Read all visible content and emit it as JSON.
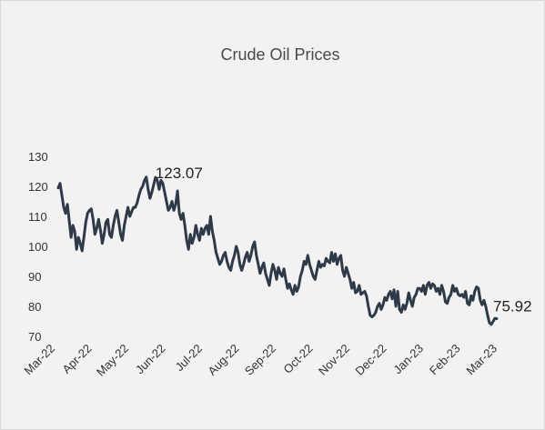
{
  "chart_data": {
    "type": "line",
    "title": "Crude Oil Prices",
    "xlabel": "",
    "ylabel": "",
    "ylim": [
      70,
      130
    ],
    "yticks": [
      70,
      80,
      90,
      100,
      110,
      120,
      130
    ],
    "x_tick_labels": [
      "Mar-22",
      "Apr-22",
      "May-22",
      "Jun-22",
      "Jul-22",
      "Aug-22",
      "Sep-22",
      "Oct-22",
      "Nov-22",
      "Dec-22",
      "Jan-23",
      "Feb-23",
      "Mar-23"
    ],
    "grid": false,
    "legend": "none",
    "line_color": "#2e3a48",
    "series": [
      {
        "values": [
          119.5,
          121.0,
          117.0,
          113.0,
          111.0,
          114.0,
          108.5,
          103.0,
          107.0,
          105.0,
          99.0,
          103.0,
          101.0,
          98.5,
          103.0,
          108.0,
          111.0,
          112.0,
          112.5,
          109.0,
          104.0,
          106.0,
          109.0,
          105.5,
          101.0,
          104.0,
          108.0,
          109.0,
          104.0,
          103.0,
          107.0,
          110.0,
          112.0,
          108.0,
          104.0,
          102.0,
          107.0,
          110.0,
          113.0,
          110.0,
          111.5,
          113.0,
          113.0,
          114.5,
          117.0,
          119.0,
          120.0,
          122.0,
          123.07,
          119.0,
          116.0,
          118.0,
          120.5,
          123.0,
          122.0,
          119.0,
          122.0,
          121.0,
          118.0,
          115.0,
          112.0,
          113.0,
          115.0,
          112.0,
          114.0,
          118.5,
          111.0,
          109.0,
          111.0,
          107.0,
          102.0,
          99.0,
          104.0,
          101.0,
          103.0,
          107.0,
          104.0,
          102.0,
          106.0,
          104.0,
          106.0,
          107.0,
          104.0,
          110.0,
          105.0,
          102.0,
          98.0,
          96.0,
          94.0,
          95.0,
          97.0,
          98.0,
          95.0,
          93.0,
          92.0,
          95.0,
          97.0,
          100.0,
          98.0,
          94.0,
          92.0,
          94.0,
          96.5,
          98.0,
          95.0,
          97.0,
          100.0,
          101.5,
          97.0,
          94.0,
          91.0,
          93.0,
          94.5,
          91.0,
          89.0,
          87.0,
          91.0,
          94.0,
          92.0,
          89.0,
          93.0,
          91.0,
          90.0,
          92.5,
          89.0,
          86.0,
          87.5,
          85.5,
          84.0,
          87.0,
          85.0,
          86.5,
          90.0,
          92.0,
          95.0,
          94.0,
          97.0,
          94.0,
          92.0,
          90.0,
          89.0,
          92.0,
          95.0,
          93.0,
          94.0,
          93.5,
          96.0,
          95.0,
          94.5,
          98.0,
          95.0,
          97.5,
          94.0,
          96.0,
          97.0,
          92.0,
          90.0,
          93.0,
          91.0,
          89.0,
          86.0,
          88.0,
          84.5,
          85.0,
          87.0,
          84.0,
          84.5,
          85.0,
          83.5,
          80.0,
          77.0,
          76.5,
          77.0,
          78.0,
          80.0,
          81.0,
          79.0,
          80.5,
          83.0,
          82.0,
          84.0,
          85.0,
          82.5,
          85.5,
          80.0,
          85.0,
          79.0,
          78.0,
          80.5,
          79.0,
          81.0,
          84.5,
          82.0,
          80.0,
          83.0,
          84.0,
          86.0,
          86.0,
          85.0,
          87.0,
          84.0,
          87.0,
          88.0,
          86.0,
          87.5,
          87.0,
          85.0,
          86.0,
          84.0,
          87.0,
          85.0,
          81.5,
          81.0,
          83.0,
          84.0,
          87.0,
          85.0,
          86.0,
          84.0,
          83.5,
          84.0,
          83.0,
          85.0,
          81.0,
          80.5,
          83.5,
          82.0,
          85.0,
          86.5,
          86.0,
          82.0,
          80.5,
          82.0,
          80.0,
          77.0,
          74.5,
          74.0,
          75.0,
          76.0,
          75.92
        ]
      }
    ],
    "annotations": [
      {
        "text": "123.07",
        "series_index": 48,
        "value": 123.07
      },
      {
        "text": "75.92",
        "series_index": 239,
        "value": 75.92
      }
    ]
  }
}
